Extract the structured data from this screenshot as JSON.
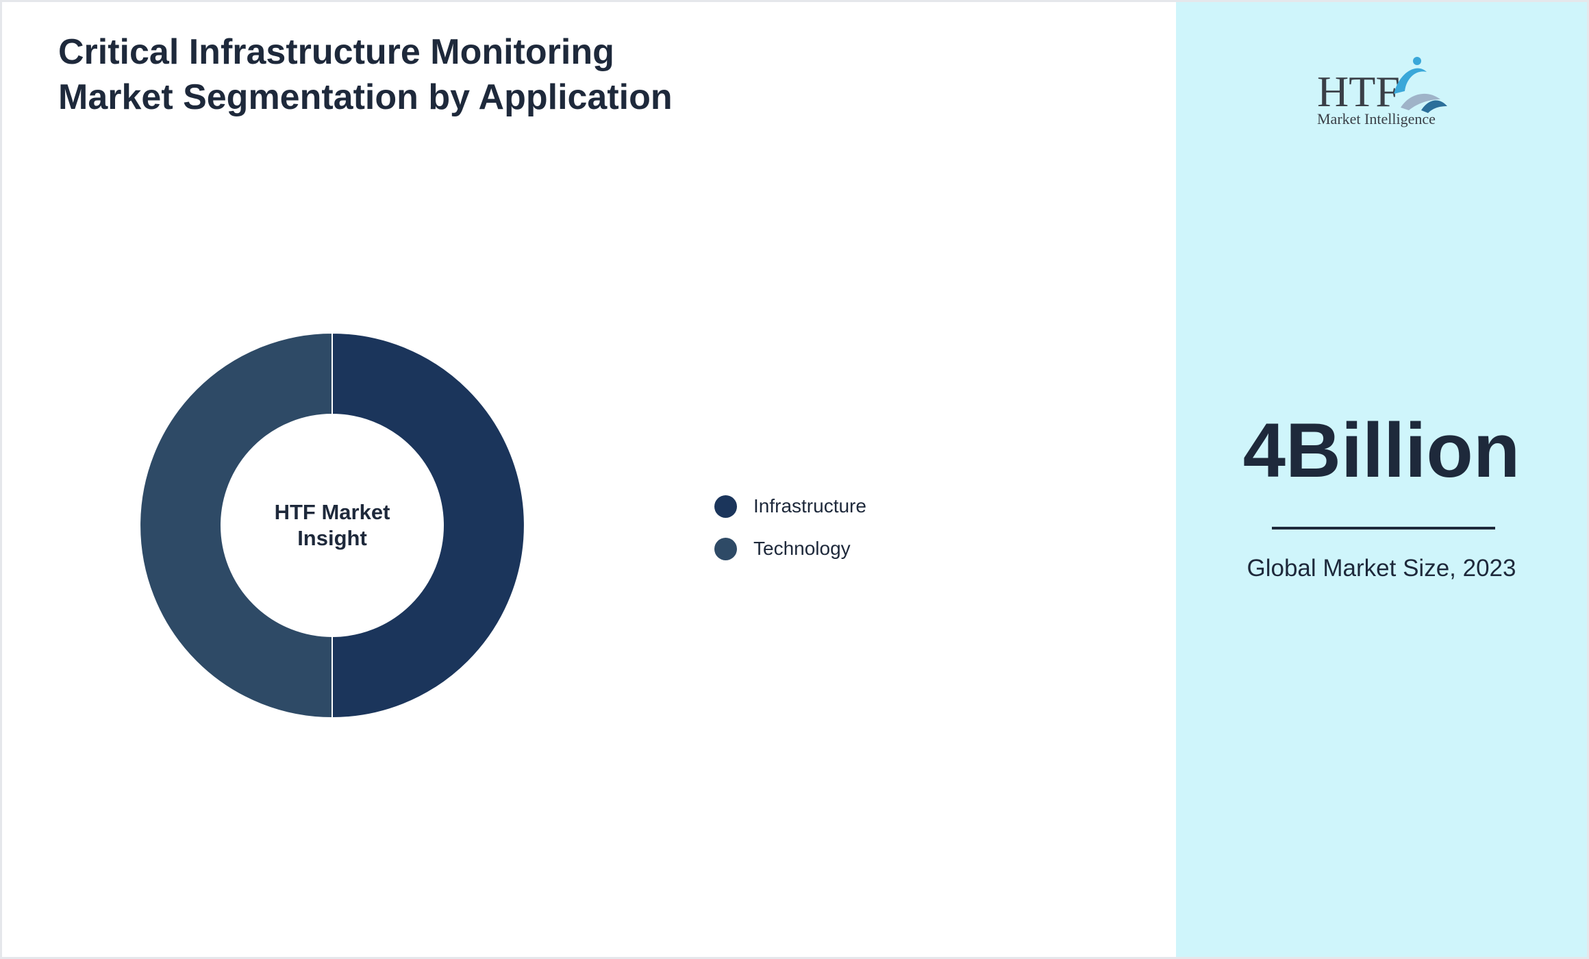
{
  "title": "Critical Infrastructure Monitoring Market Segmentation by Application",
  "donut_center_label": "HTF Market Insight",
  "logo": {
    "text": "HTF",
    "subtitle": "Market Intelligence"
  },
  "summary": {
    "value": "4Billion",
    "caption": "Global Market Size, 2023"
  },
  "colors": {
    "infrastructure": "#1b355b",
    "technology": "#2e4a66",
    "sidebar_bg": "#cff5fb",
    "text": "#1e293b"
  },
  "chart_data": {
    "type": "pie",
    "variant": "donut",
    "title": "Critical Infrastructure Monitoring Market Segmentation by Application",
    "categories": [
      "Infrastructure",
      "Technology"
    ],
    "values": [
      50,
      50
    ],
    "colors": [
      "#1b355b",
      "#2e4a66"
    ],
    "legend": "right"
  }
}
